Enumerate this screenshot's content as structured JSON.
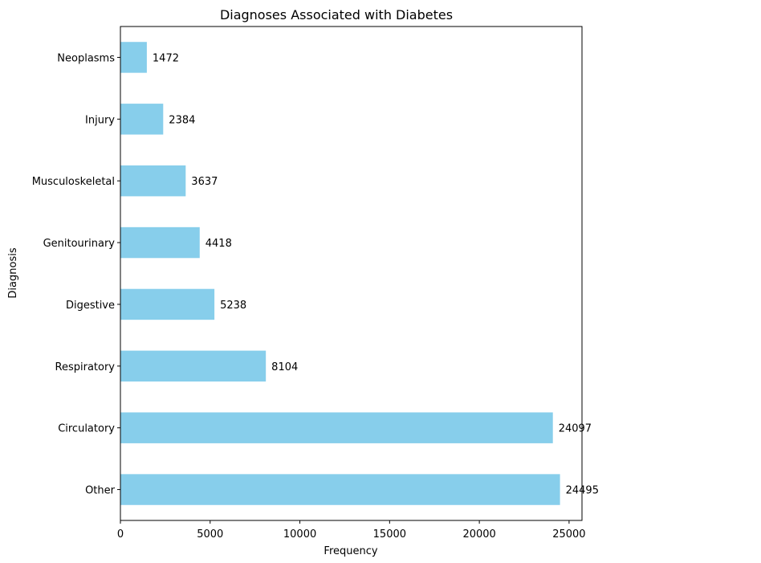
{
  "chart_data": {
    "type": "bar",
    "orientation": "horizontal",
    "title": "Diagnoses Associated with Diabetes",
    "xlabel": "Frequency",
    "ylabel": "Diagnosis",
    "categories": [
      "Other",
      "Circulatory",
      "Respiratory",
      "Digestive",
      "Genitourinary",
      "Musculoskeletal",
      "Injury",
      "Neoplasms"
    ],
    "values": [
      24495,
      24097,
      8104,
      5238,
      4418,
      3637,
      2384,
      1472
    ],
    "xlim": [
      0,
      25720
    ],
    "xticks": [
      0,
      5000,
      10000,
      15000,
      20000,
      25000
    ],
    "grid": false,
    "bar_color": "#87CEEB",
    "data_labels": true
  }
}
